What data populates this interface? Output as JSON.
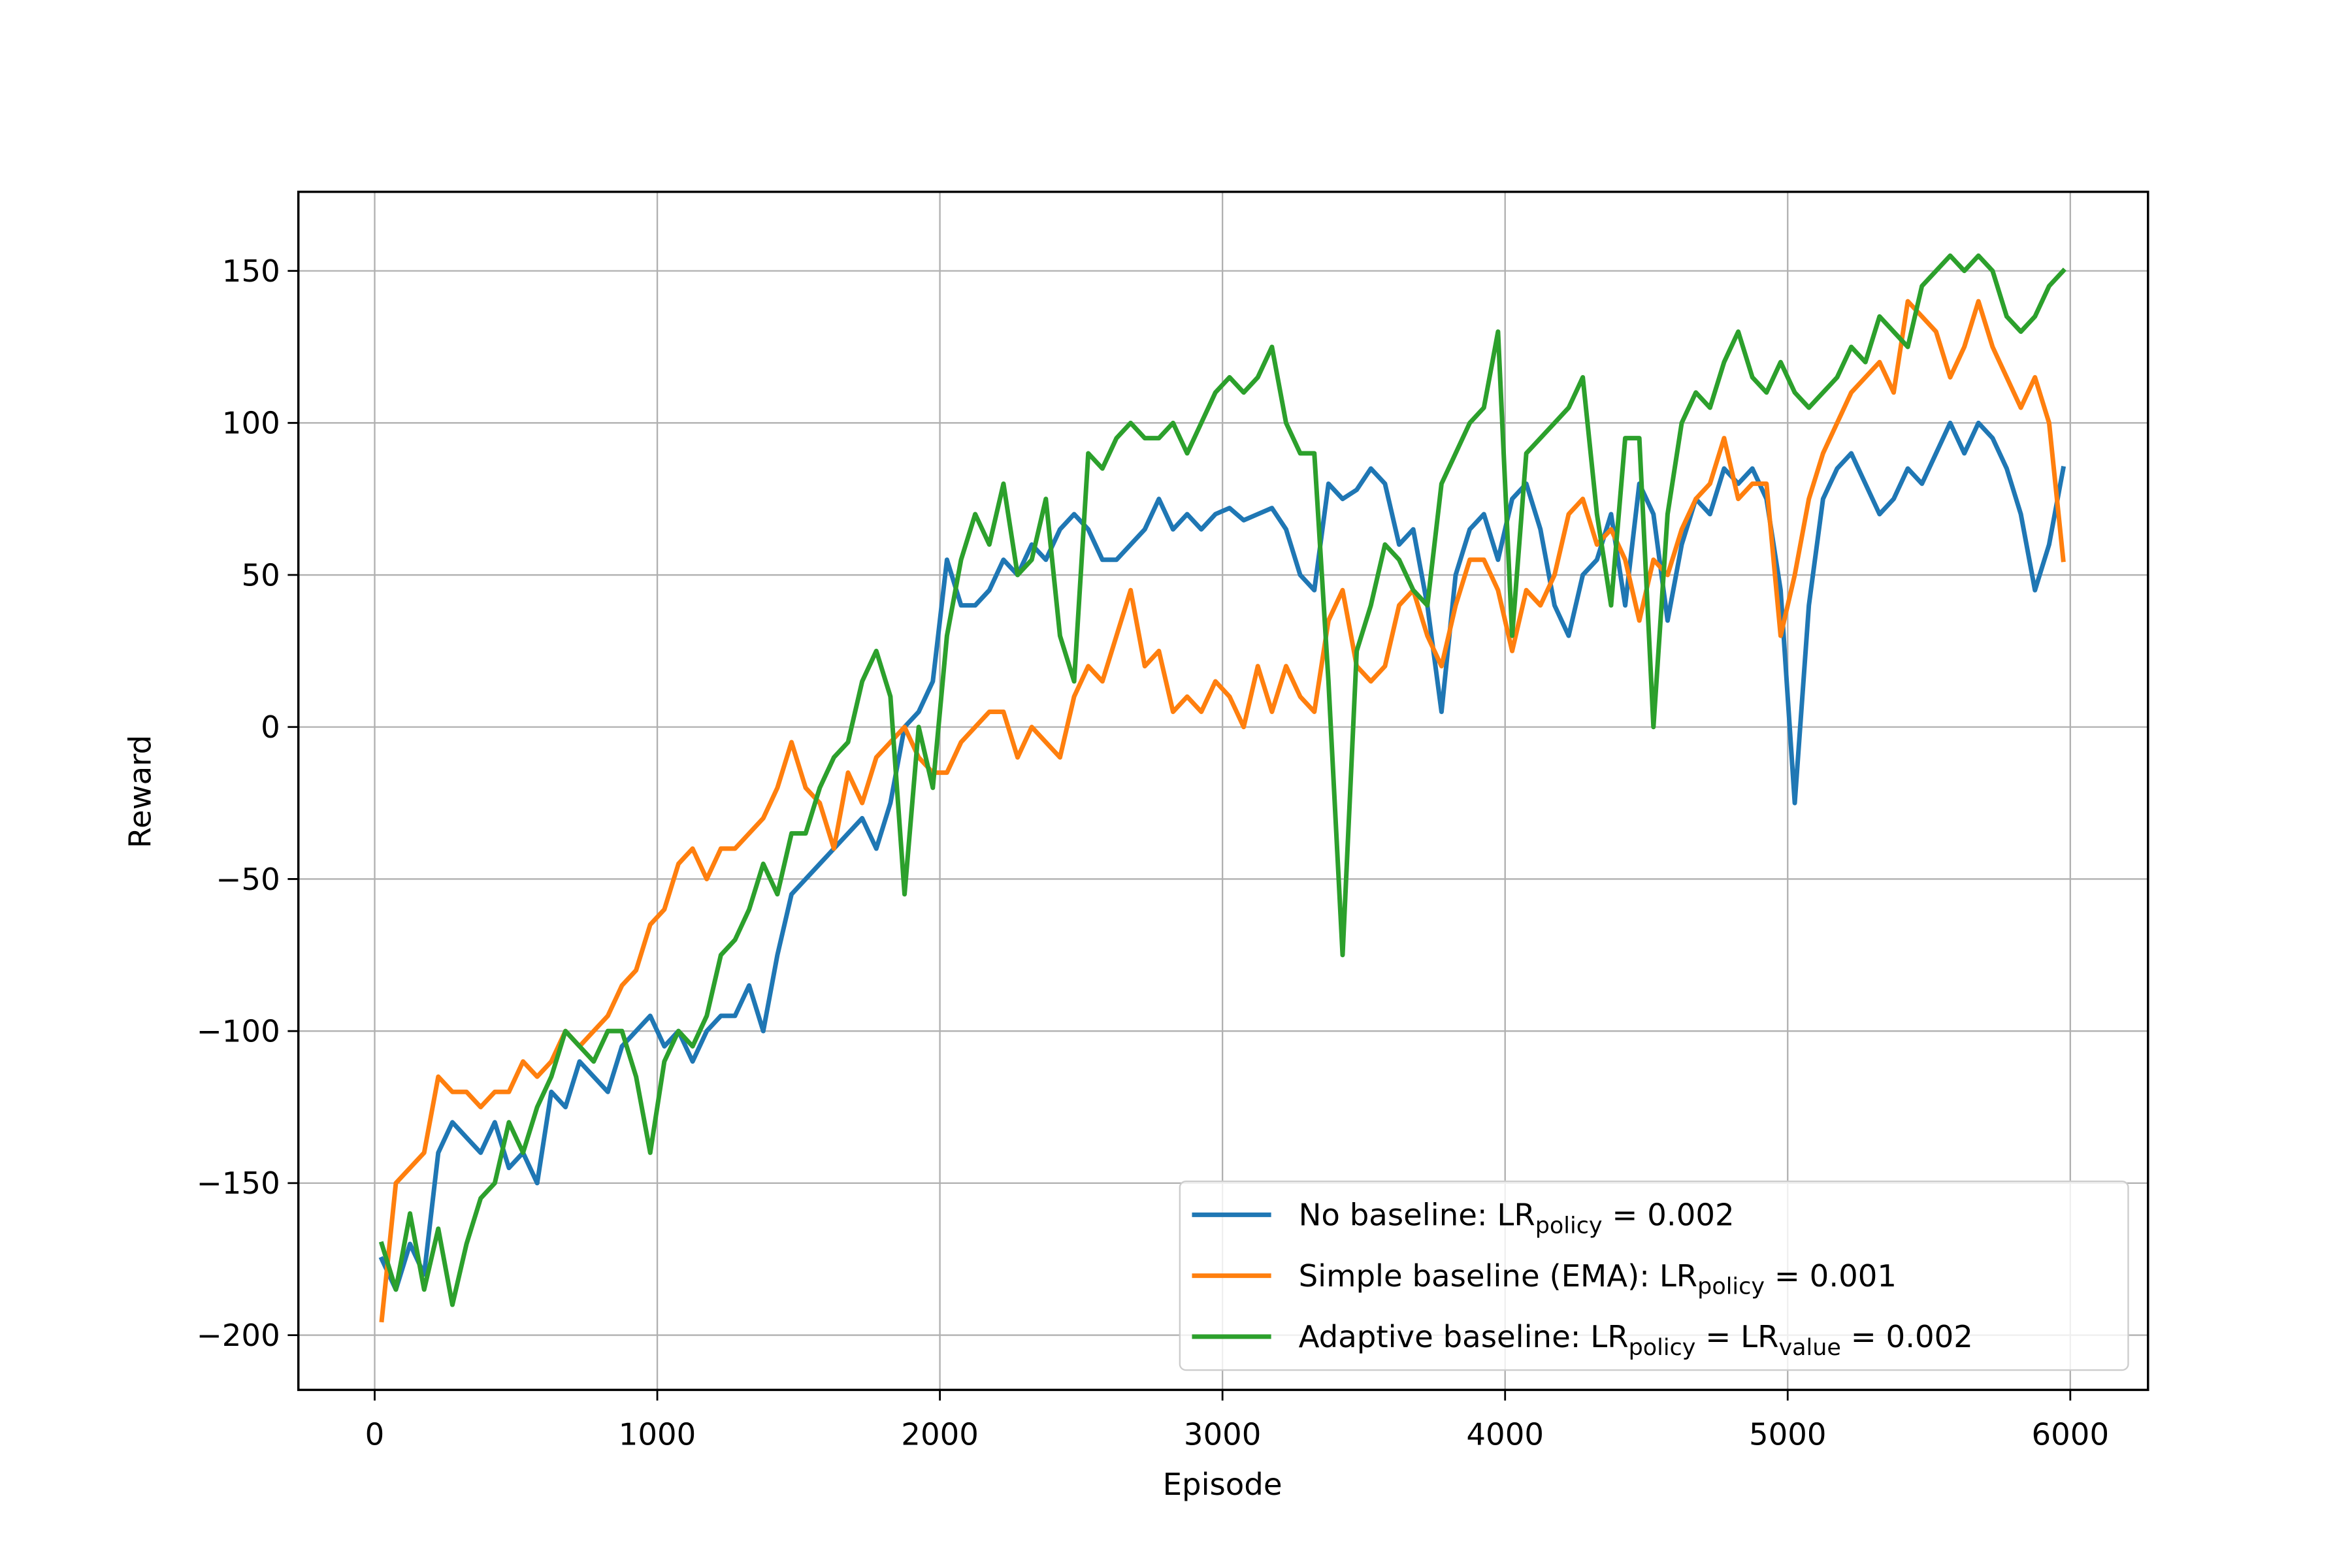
{
  "chart_data": {
    "type": "line",
    "x_label": "Episode",
    "y_label": "Reward",
    "x": [
      25,
      75,
      125,
      175,
      225,
      275,
      325,
      375,
      425,
      475,
      525,
      575,
      625,
      675,
      725,
      775,
      825,
      875,
      925,
      975,
      1025,
      1075,
      1125,
      1175,
      1225,
      1275,
      1325,
      1375,
      1425,
      1475,
      1525,
      1575,
      1625,
      1675,
      1725,
      1775,
      1825,
      1875,
      1925,
      1975,
      2025,
      2075,
      2125,
      2175,
      2225,
      2275,
      2325,
      2375,
      2425,
      2475,
      2525,
      2575,
      2625,
      2675,
      2725,
      2775,
      2825,
      2875,
      2925,
      2975,
      3025,
      3075,
      3125,
      3175,
      3225,
      3275,
      3325,
      3375,
      3425,
      3475,
      3525,
      3575,
      3625,
      3675,
      3725,
      3775,
      3825,
      3875,
      3925,
      3975,
      4025,
      4075,
      4125,
      4175,
      4225,
      4275,
      4325,
      4375,
      4425,
      4475,
      4525,
      4575,
      4625,
      4675,
      4725,
      4775,
      4825,
      4875,
      4925,
      4975,
      5025,
      5075,
      5125,
      5175,
      5225,
      5275,
      5325,
      5375,
      5425,
      5475,
      5525,
      5575,
      5625,
      5675,
      5725,
      5775,
      5825,
      5875,
      5925,
      5975
    ],
    "series": [
      {
        "name": [
          "No baseline: LR",
          {
            "sub": "policy"
          },
          " =  0.002"
        ],
        "color": "#1f77b4",
        "values": [
          -175,
          -185,
          -170,
          -180,
          -140,
          -130,
          -135,
          -140,
          -130,
          -145,
          -140,
          -150,
          -120,
          -125,
          -110,
          -115,
          -120,
          -105,
          -100,
          -95,
          -105,
          -100,
          -110,
          -100,
          -95,
          -95,
          -85,
          -100,
          -75,
          -55,
          -50,
          -45,
          -40,
          -35,
          -30,
          -40,
          -25,
          0,
          5,
          15,
          55,
          40,
          40,
          45,
          55,
          50,
          60,
          55,
          65,
          70,
          65,
          55,
          55,
          60,
          65,
          75,
          65,
          70,
          65,
          70,
          72,
          68,
          70,
          72,
          65,
          50,
          45,
          80,
          75,
          78,
          85,
          80,
          60,
          65,
          40,
          5,
          50,
          65,
          70,
          55,
          75,
          80,
          65,
          40,
          30,
          50,
          55,
          70,
          40,
          80,
          70,
          35,
          60,
          75,
          70,
          85,
          80,
          85,
          75,
          45,
          -25,
          40,
          75,
          85,
          90,
          80,
          70,
          75,
          85,
          80,
          90,
          100,
          90,
          100,
          95,
          85,
          70,
          45,
          60,
          85
        ]
      },
      {
        "name": [
          "Simple baseline (EMA): LR",
          {
            "sub": "policy"
          },
          " =  0.001"
        ],
        "color": "#ff7f0e",
        "values": [
          -195,
          -150,
          -145,
          -140,
          -115,
          -120,
          -120,
          -125,
          -120,
          -120,
          -110,
          -115,
          -110,
          -100,
          -105,
          -100,
          -95,
          -85,
          -80,
          -65,
          -60,
          -45,
          -40,
          -50,
          -40,
          -40,
          -35,
          -30,
          -20,
          -5,
          -20,
          -25,
          -40,
          -15,
          -25,
          -10,
          -5,
          0,
          -10,
          -15,
          -15,
          -5,
          0,
          5,
          5,
          -10,
          0,
          -5,
          -10,
          10,
          20,
          15,
          30,
          45,
          20,
          25,
          5,
          10,
          5,
          15,
          10,
          0,
          20,
          5,
          20,
          10,
          5,
          35,
          45,
          20,
          15,
          20,
          40,
          45,
          30,
          20,
          40,
          55,
          55,
          45,
          25,
          45,
          40,
          50,
          70,
          75,
          60,
          65,
          55,
          35,
          55,
          50,
          65,
          75,
          80,
          95,
          75,
          80,
          80,
          30,
          50,
          75,
          90,
          100,
          110,
          115,
          120,
          110,
          140,
          135,
          130,
          115,
          125,
          140,
          125,
          115,
          105,
          115,
          100,
          55
        ]
      },
      {
        "name": [
          "Adaptive baseline: LR",
          {
            "sub": "policy"
          },
          " = LR",
          {
            "sub": "value"
          },
          " =  0.002"
        ],
        "color": "#2ca02c",
        "values": [
          -170,
          -185,
          -160,
          -185,
          -165,
          -190,
          -170,
          -155,
          -150,
          -130,
          -140,
          -125,
          -115,
          -100,
          -105,
          -110,
          -100,
          -100,
          -115,
          -140,
          -110,
          -100,
          -105,
          -95,
          -75,
          -70,
          -60,
          -45,
          -55,
          -35,
          -35,
          -20,
          -10,
          -5,
          15,
          25,
          10,
          -55,
          0,
          -20,
          30,
          55,
          70,
          60,
          80,
          50,
          55,
          75,
          30,
          15,
          90,
          85,
          95,
          100,
          95,
          95,
          100,
          90,
          100,
          110,
          115,
          110,
          115,
          125,
          100,
          90,
          90,
          15,
          -75,
          25,
          40,
          60,
          55,
          45,
          40,
          80,
          90,
          100,
          105,
          130,
          30,
          90,
          95,
          100,
          105,
          115,
          70,
          40,
          95,
          95,
          0,
          70,
          100,
          110,
          105,
          120,
          130,
          115,
          110,
          120,
          110,
          105,
          110,
          115,
          125,
          120,
          135,
          130,
          125,
          145,
          150,
          155,
          150,
          155,
          150,
          135,
          130,
          135,
          145,
          150
        ]
      }
    ],
    "xlim": [
      -270,
      6275
    ],
    "ylim": [
      -218,
      176
    ],
    "xticks": [
      0,
      1000,
      2000,
      3000,
      4000,
      5000,
      6000
    ],
    "yticks": [
      {
        "value": -200,
        "label": "−200"
      },
      {
        "value": -150,
        "label": "−150"
      },
      {
        "value": -100,
        "label": "−100"
      },
      {
        "value": -50,
        "label": "−50"
      },
      0,
      50,
      100,
      150
    ],
    "grid": true,
    "legend_position": "lower right"
  }
}
